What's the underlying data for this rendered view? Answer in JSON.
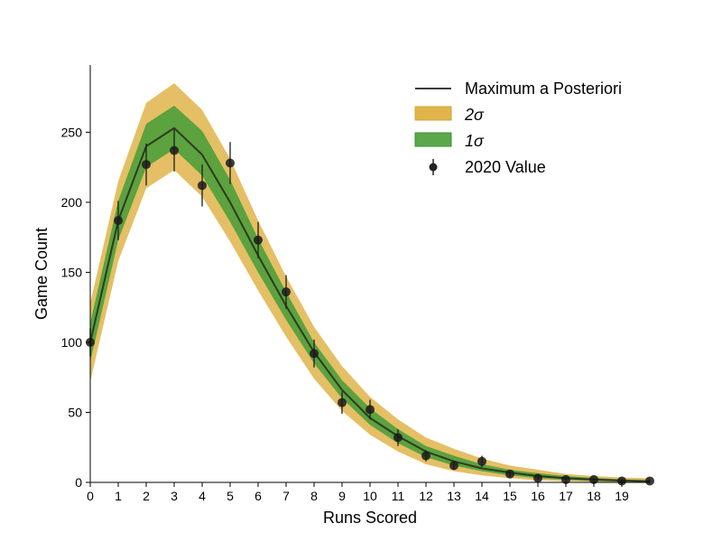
{
  "chart_data": {
    "type": "line",
    "xlabel": "Runs Scored",
    "ylabel": "Game Count",
    "xlim": [
      0,
      20
    ],
    "ylim": [
      0,
      298
    ],
    "xticks": [
      0,
      1,
      2,
      3,
      4,
      5,
      6,
      7,
      8,
      9,
      10,
      11,
      12,
      13,
      14,
      15,
      16,
      17,
      18,
      19
    ],
    "yticks": [
      0,
      50,
      100,
      150,
      200,
      250
    ],
    "x": [
      0,
      1,
      2,
      3,
      4,
      5,
      6,
      7,
      8,
      9,
      10,
      11,
      12,
      13,
      14,
      15,
      16,
      17,
      18,
      19,
      20
    ],
    "bands": [
      {
        "label": "2σ",
        "color": "#e0b44a",
        "lower": [
          72,
          158,
          210,
          223,
          204,
          172,
          137,
          104,
          74,
          51,
          34,
          22,
          13,
          8,
          5,
          3,
          1.5,
          0.8,
          0.4,
          0.2,
          0.1
        ],
        "upper": [
          128,
          215,
          271,
          285,
          266,
          231,
          187,
          147,
          111,
          83,
          61,
          45,
          32,
          24,
          17,
          12,
          9,
          6,
          4.5,
          3.5,
          3
        ]
      },
      {
        "label": "1σ",
        "color": "#4c9e3a",
        "lower": [
          86,
          173,
          225,
          238,
          219,
          186,
          150,
          116,
          85,
          60,
          41,
          28,
          18,
          12,
          8,
          5,
          3,
          1.8,
          1,
          0.6,
          0.3
        ],
        "upper": [
          114,
          201,
          256,
          269,
          251,
          216,
          174,
          136,
          100,
          73,
          53,
          38,
          26,
          19,
          13,
          9,
          6.5,
          4.5,
          3.2,
          2.2,
          1.5
        ]
      }
    ],
    "series": [
      {
        "name": "Maximum a Posteriori",
        "color": "#3a3a3a",
        "values": [
          100,
          187,
          240,
          253,
          234,
          200,
          162,
          126,
          93,
          66,
          46,
          33,
          22,
          15,
          10,
          7,
          4.5,
          3,
          2,
          1.3,
          0.8
        ]
      }
    ],
    "points": {
      "name": "2020 Value",
      "color": "#111111",
      "x": [
        0,
        1,
        2,
        3,
        4,
        5,
        6,
        7,
        8,
        9,
        10,
        11,
        12,
        13,
        14,
        15,
        16,
        17,
        18,
        19,
        20
      ],
      "y": [
        100,
        187,
        227,
        237,
        212,
        228,
        173,
        136,
        92,
        57,
        52,
        32,
        19,
        12,
        15,
        6,
        3,
        2,
        2,
        1,
        1
      ],
      "yerr": [
        10,
        14,
        15,
        15,
        15,
        15,
        13,
        12,
        10,
        8,
        7,
        6,
        4,
        3,
        4,
        2,
        2,
        1,
        1,
        1,
        1
      ]
    },
    "legend": {
      "position": "upper-right",
      "entries": [
        "Maximum a Posteriori",
        "2σ",
        "1σ",
        "2020 Value"
      ]
    },
    "grid": false
  }
}
